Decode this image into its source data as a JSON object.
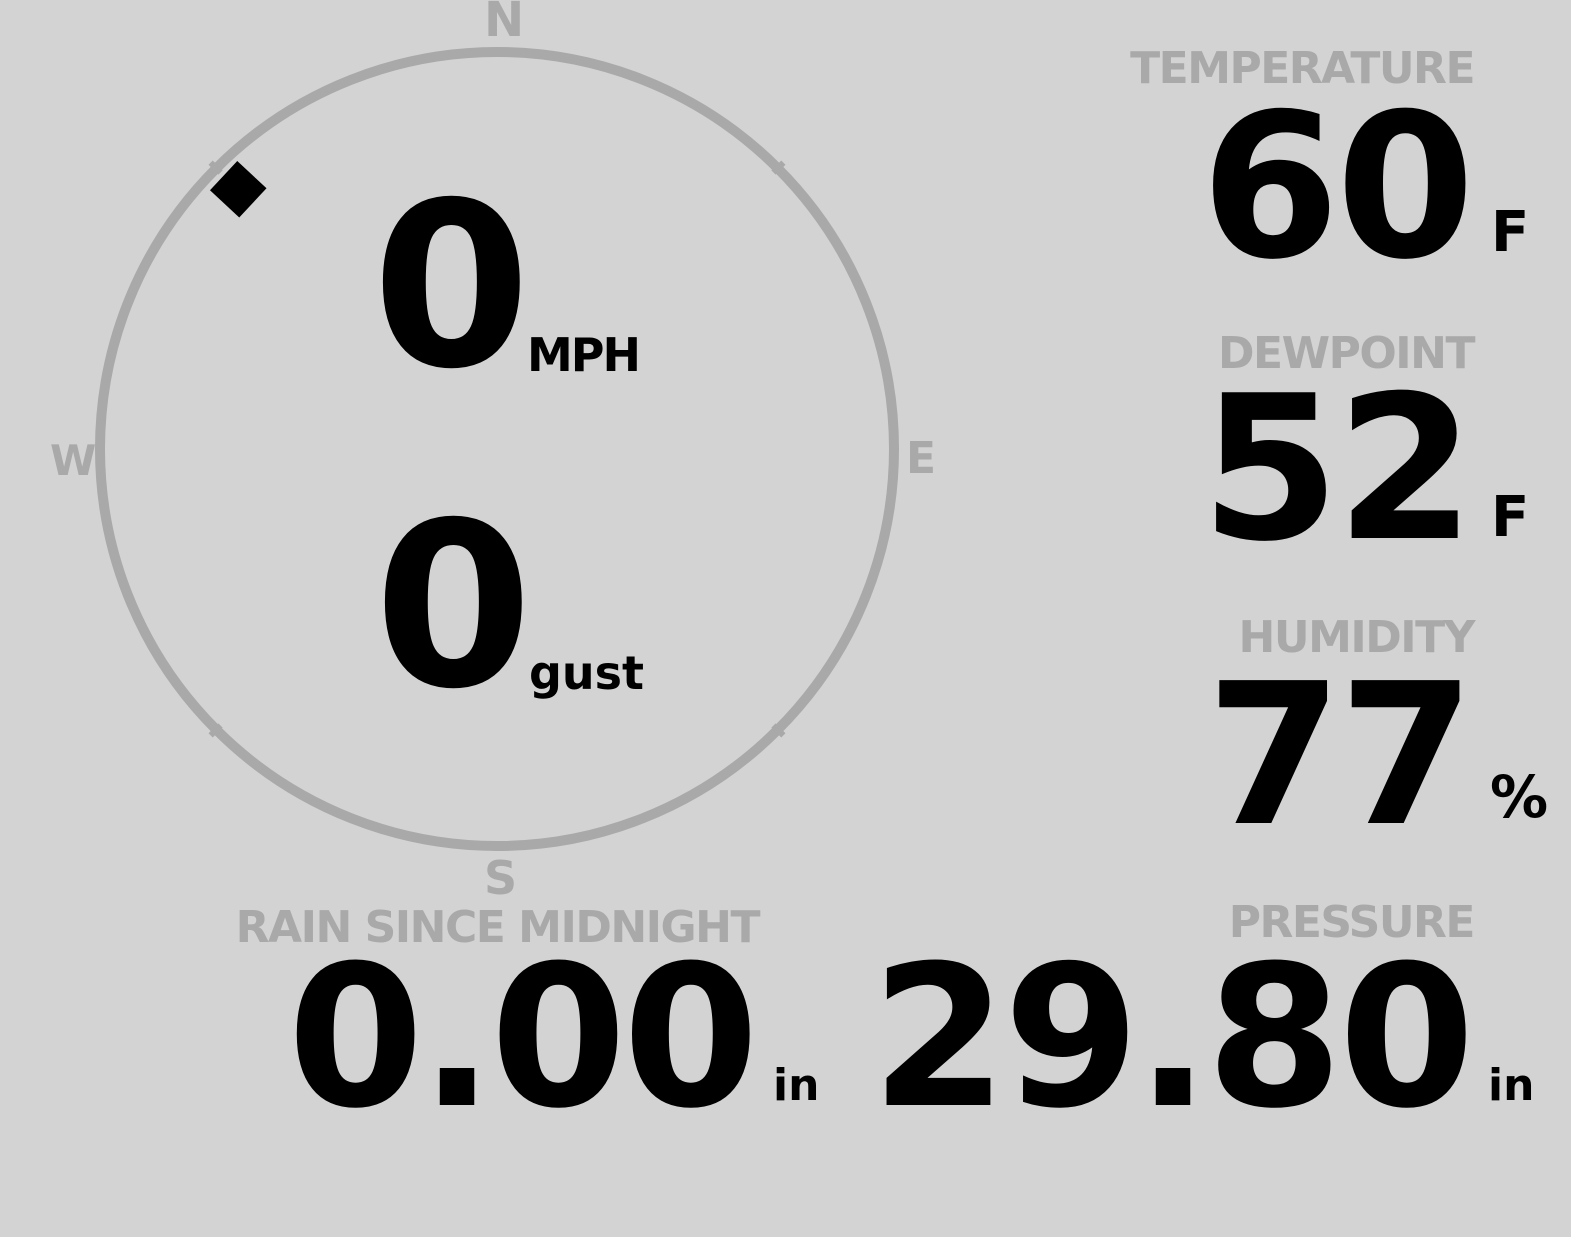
{
  "colors": {
    "background": "#d3d3d3",
    "label": "#a9a9a9",
    "value": "#000000"
  },
  "compass": {
    "north": "N",
    "east": "E",
    "south": "S",
    "west": "W",
    "wind_direction_deg": 315,
    "wind_speed": "0",
    "wind_speed_unit": "MPH",
    "gust": "0",
    "gust_unit": "gust"
  },
  "temperature": {
    "label": "TEMPERATURE",
    "value": "60",
    "unit": "F"
  },
  "dewpoint": {
    "label": "DEWPOINT",
    "value": "52",
    "unit": "F"
  },
  "humidity": {
    "label": "HUMIDITY",
    "value": "77",
    "unit": "%"
  },
  "pressure": {
    "label": "PRESSURE",
    "value": "29.80",
    "unit": "in"
  },
  "rain": {
    "label": "RAIN SINCE MIDNIGHT",
    "value": "0.00",
    "unit": "in"
  }
}
